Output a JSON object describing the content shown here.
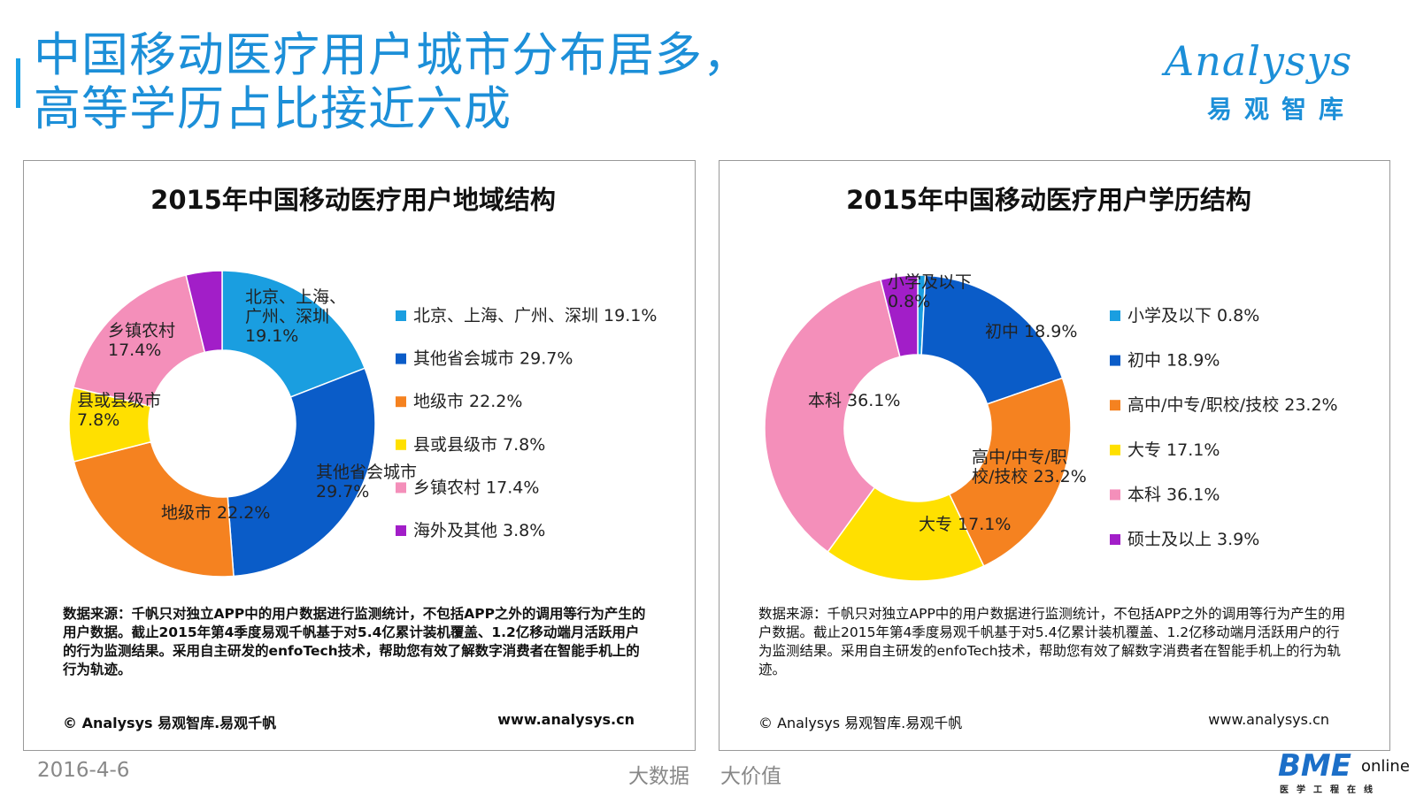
{
  "page": {
    "title": "中国移动医疗用户城市分布居多，\n高等学历占比接近六成",
    "logo_word": "Analysys",
    "logo_cn": "易观智库",
    "footer_date": "2016-4-6",
    "footer_slogan_1": "大数据",
    "footer_slogan_2": "大价值",
    "footer_logo_main": "BME",
    "footer_logo_online": "online",
    "footer_logo_sub": "医学工程在线"
  },
  "source_text": "数据来源：千帆只对独立APP中的用户数据进行监测统计，不包括APP之外的调用等行为产生的用户数据。截止2015年第4季度易观千帆基于对5.4亿累计装机覆盖、1.2亿移动端月活跃用户的行为监测结果。采用自主研发的enfoTech技术，帮助您有效了解数字消费者在智能手机上的行为轨迹。",
  "copyright": "© Analysys 易观智库.易观千帆",
  "website": "www.analysys.cn",
  "chart_data": [
    {
      "type": "pie",
      "donut": true,
      "title": "2015年中国移动医疗用户地域结构",
      "categories": [
        "北京、上海、广州、深圳",
        "其他省会城市",
        "地级市",
        "县或县级市",
        "乡镇农村",
        "海外及其他"
      ],
      "values": [
        19.1,
        29.7,
        22.2,
        7.8,
        17.4,
        3.8
      ],
      "unit": "%",
      "colors": [
        "#1a9ee0",
        "#0a5cc8",
        "#f58220",
        "#ffe000",
        "#f48fba",
        "#a21ec8"
      ],
      "slice_labels": [
        "北京、上海、\n广州、深圳\n19.1%",
        "其他省会城市\n29.7%",
        "地级市 22.2%",
        "县或县级市\n7.8%",
        "乡镇农村\n17.4%",
        ""
      ],
      "legend": [
        "北京、上海、广州、深圳 19.1%",
        "其他省会城市 29.7%",
        "地级市 22.2%",
        "县或县级市 7.8%",
        "乡镇农村 17.4%",
        "海外及其他 3.8%"
      ],
      "legend_position": "right"
    },
    {
      "type": "pie",
      "donut": true,
      "title": "2015年中国移动医疗用户学历结构",
      "categories": [
        "小学及以下",
        "初中",
        "高中/中专/职校/技校",
        "大专",
        "本科",
        "硕士及以上"
      ],
      "values": [
        0.8,
        18.9,
        23.2,
        17.1,
        36.1,
        3.9
      ],
      "unit": "%",
      "colors": [
        "#1a9ee0",
        "#0a5cc8",
        "#f58220",
        "#ffe000",
        "#f48fba",
        "#a21ec8"
      ],
      "slice_labels": [
        "小学及以下\n0.8%",
        "初中 18.9%",
        "高中/中专/职\n校/技校 23.2%",
        "大专 17.1%",
        "本科 36.1%",
        ""
      ],
      "legend": [
        "小学及以下 0.8%",
        "初中 18.9%",
        "高中/中专/职校/技校 23.2%",
        "大专 17.1%",
        "本科 36.1%",
        "硕士及以上 3.9%"
      ],
      "legend_position": "right"
    }
  ]
}
